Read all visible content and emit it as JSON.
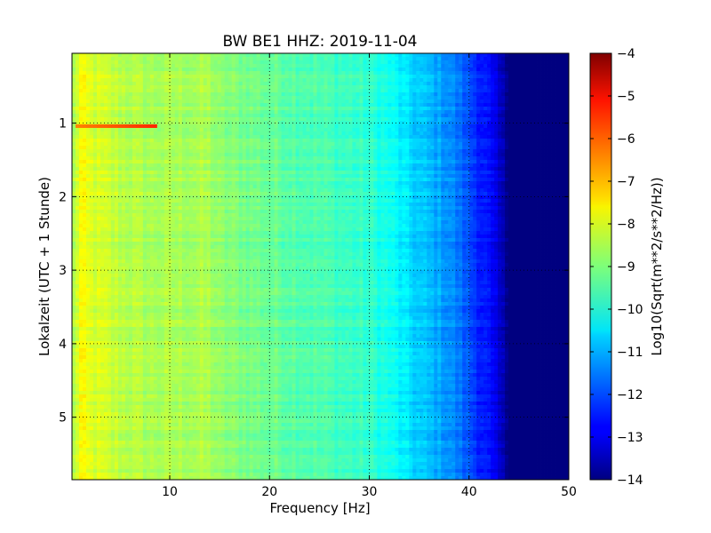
{
  "chart_data": {
    "type": "heatmap",
    "title": "BW BE1 HHZ: 2019-11-04",
    "xlabel": "Frequency [Hz]",
    "ylabel": "Lokalzeit (UTC + 1 Stunde)",
    "xlim": [
      0.2,
      50
    ],
    "ylim": [
      0.05,
      5.85
    ],
    "y_inverted": true,
    "xticks": [
      10,
      20,
      30,
      40,
      50
    ],
    "xtick_labels": [
      "10",
      "20",
      "30",
      "40",
      "50"
    ],
    "yticks": [
      1,
      2,
      3,
      4,
      5
    ],
    "ytick_labels": [
      "1",
      "2",
      "3",
      "4",
      "5"
    ],
    "grid": true,
    "colormap": "jet",
    "colorbar": {
      "label": "Log10(Sqrt(m**2/s**2/Hz))",
      "range": [
        -14,
        -4
      ],
      "ticks": [
        -4,
        -5,
        -6,
        -7,
        -8,
        -9,
        -10,
        -11,
        -12,
        -13,
        -14
      ],
      "tick_labels": [
        "−4",
        "−5",
        "−6",
        "−7",
        "−8",
        "−9",
        "−10",
        "−11",
        "−12",
        "−13",
        "−14"
      ]
    },
    "spectrum_profile": {
      "frequency_hz": [
        0.2,
        1,
        2,
        5,
        8,
        10,
        14,
        15,
        20,
        25,
        30,
        32,
        34,
        38,
        40,
        42,
        43,
        44,
        46,
        50
      ],
      "log10_psd": [
        -8.8,
        -7.8,
        -8.1,
        -8.4,
        -8.6,
        -8.6,
        -8.6,
        -8.9,
        -9.2,
        -9.5,
        -9.8,
        -10.1,
        -10.6,
        -11.3,
        -12.0,
        -12.7,
        -13.3,
        -14.0,
        -14.0,
        -14.0
      ]
    },
    "notable_features": [
      {
        "time": 1.05,
        "frequency_range_hz": [
          0.6,
          8.5
        ],
        "log10_psd": -6.6
      }
    ]
  }
}
